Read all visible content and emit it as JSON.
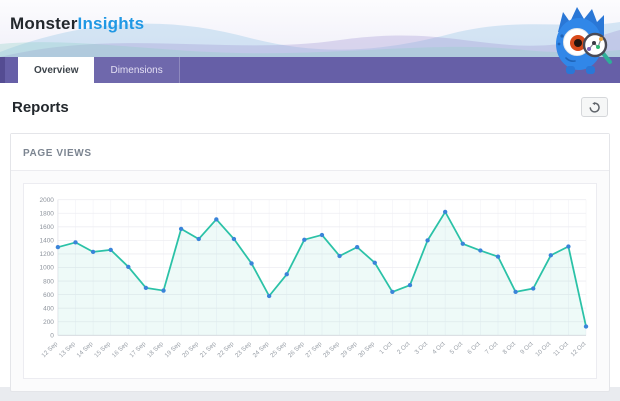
{
  "header": {
    "logo_primary": "Monster",
    "logo_secondary": "Insights"
  },
  "tabs": [
    {
      "label": "Overview",
      "active": true
    },
    {
      "label": "Dimensions",
      "active": false
    }
  ],
  "page": {
    "title": "Reports"
  },
  "panel": {
    "title": "PAGE VIEWS"
  },
  "icons": {
    "mascot": "monster-mascot-with-magnifying-glass",
    "refresh": "refresh-icon"
  },
  "colors": {
    "tab_bar": "#665fa7",
    "logo_blue": "#2098e4",
    "logo_dark": "#23282d",
    "line": "#2bc2a7",
    "dot": "#3a84d9",
    "area_fill": "rgba(43,194,167,0.08)",
    "grid": "#ededf2",
    "axis_text": "#8d939c"
  },
  "chart_data": {
    "type": "line",
    "title": "PAGE VIEWS",
    "xlabel": "",
    "ylabel": "",
    "ylim": [
      0,
      2000
    ],
    "ytick_step": 200,
    "grid": true,
    "legend": "none",
    "x": [
      "12 Sep",
      "13 Sep",
      "14 Sep",
      "15 Sep",
      "16 Sep",
      "17 Sep",
      "18 Sep",
      "19 Sep",
      "20 Sep",
      "21 Sep",
      "22 Sep",
      "23 Sep",
      "24 Sep",
      "25 Sep",
      "26 Sep",
      "27 Sep",
      "28 Sep",
      "29 Sep",
      "30 Sep",
      "1 Oct",
      "2 Oct",
      "3 Oct",
      "4 Oct",
      "5 Oct",
      "6 Oct",
      "7 Oct",
      "8 Oct",
      "9 Oct",
      "10 Oct",
      "11 Oct",
      "12 Oct"
    ],
    "series": [
      {
        "name": "Page Views",
        "values": [
          1300,
          1370,
          1230,
          1260,
          1010,
          700,
          660,
          1570,
          1420,
          1710,
          1420,
          1060,
          580,
          900,
          1410,
          1480,
          1170,
          1300,
          1070,
          640,
          740,
          1400,
          1820,
          1350,
          1250,
          1160,
          640,
          690,
          1180,
          1310,
          130
        ]
      }
    ]
  }
}
